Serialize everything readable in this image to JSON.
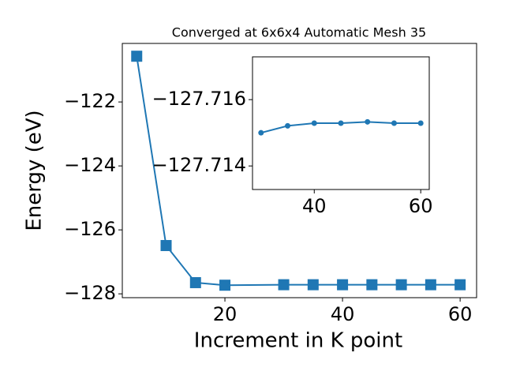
{
  "chart_data": [
    {
      "type": "line",
      "title": "Converged at 6x6x4 Automatic Mesh 35",
      "x_label": "Increment in K point",
      "y_label": "Energy (eV)",
      "x": [
        5,
        10,
        15,
        20,
        30,
        35,
        40,
        45,
        50,
        55,
        60
      ],
      "values": [
        -120.57,
        -126.49,
        -127.65,
        -127.73,
        -127.715,
        -127.7152,
        -127.7153,
        -127.7153,
        -127.7153,
        -127.7153,
        -127.7153
      ],
      "color": "#1f77b4",
      "marker": "square",
      "xlim": [
        2.55,
        62.8
      ],
      "ylim": [
        -128.12,
        -120.17
      ],
      "xticks": [
        20,
        40,
        60
      ],
      "yticks": [
        {
          "value": -122,
          "label": "−122"
        },
        {
          "value": -124,
          "label": "−124"
        },
        {
          "value": -126,
          "label": "−126"
        },
        {
          "value": -128,
          "label": "−128"
        }
      ]
    },
    {
      "type": "line",
      "x": [
        30,
        35,
        40,
        45,
        50,
        55,
        60
      ],
      "values": [
        -127.715,
        -127.71521,
        -127.71529,
        -127.71529,
        -127.71533,
        -127.71529,
        -127.71529
      ],
      "color": "#1f77b4",
      "marker": "circle",
      "xlim": [
        28.4,
        61.6
      ],
      "ylim": [
        -127.71329,
        -127.71729
      ],
      "xticks": [
        40,
        60
      ],
      "yticks": [
        {
          "value": -127.716,
          "label": "−127.716"
        },
        {
          "value": -127.714,
          "label": "−127.714"
        }
      ]
    }
  ]
}
